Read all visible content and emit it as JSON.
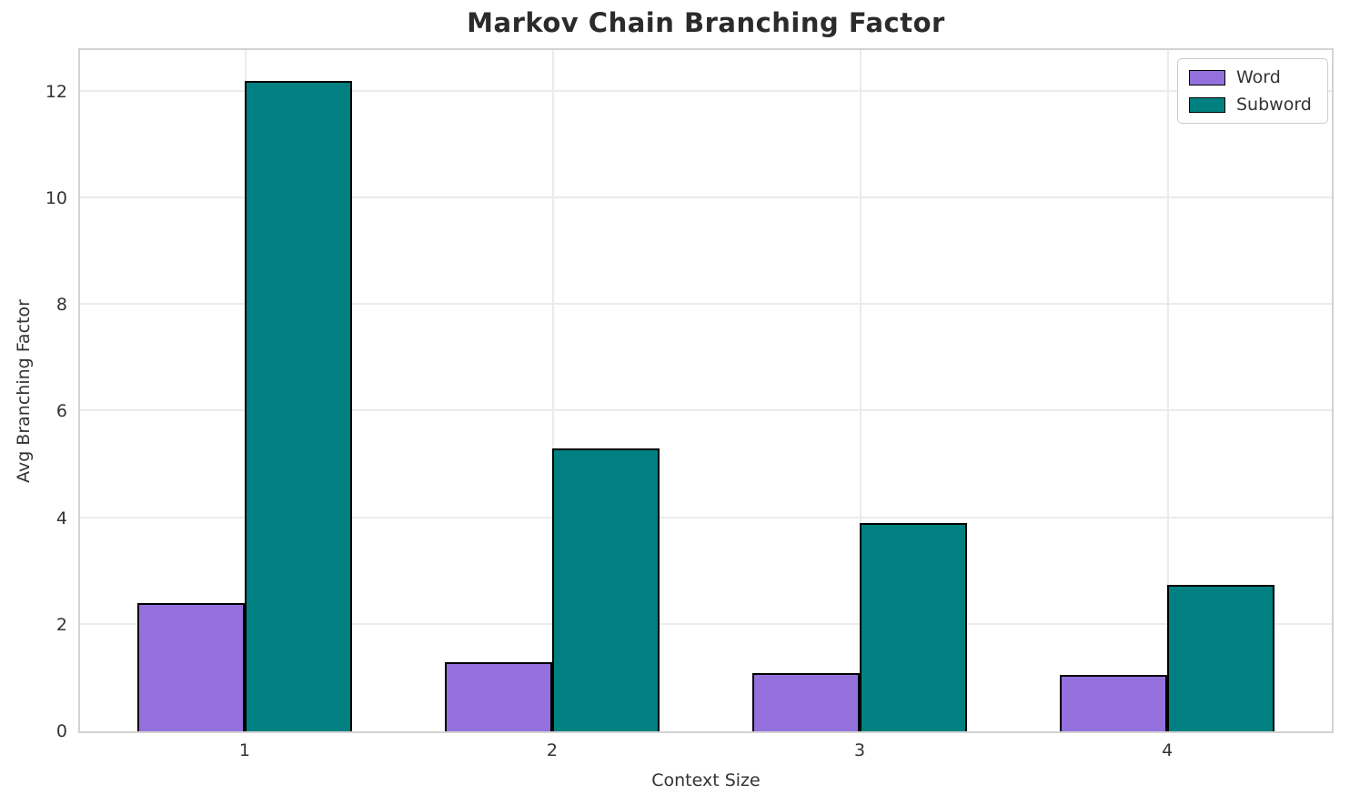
{
  "chart_data": {
    "type": "bar",
    "title": "Markov Chain Branching Factor",
    "xlabel": "Context Size",
    "ylabel": "Avg Branching Factor",
    "categories": [
      "1",
      "2",
      "3",
      "4"
    ],
    "series": [
      {
        "name": "Word",
        "color": "#9370DB",
        "values": [
          2.4,
          1.3,
          1.1,
          1.05
        ]
      },
      {
        "name": "Subword",
        "color": "#008080",
        "values": [
          12.2,
          5.3,
          3.9,
          2.75
        ]
      }
    ],
    "yticks": [
      0,
      2,
      4,
      6,
      8,
      10,
      12
    ],
    "ylim": [
      0,
      12.78
    ],
    "xlim": [
      0.465,
      4.535
    ],
    "bar_width_units": 0.35,
    "bar_edge_color": "#000000",
    "grid": true,
    "gridline_color": "#ebebeb",
    "legend_position": "upper right",
    "legend_labels": [
      "Word",
      "Subword"
    ]
  }
}
